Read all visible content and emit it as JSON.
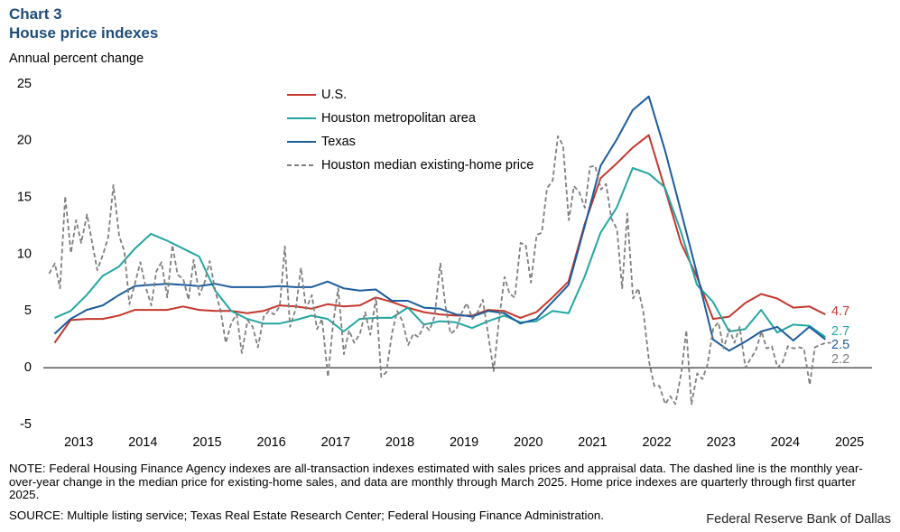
{
  "chart_data": {
    "type": "line",
    "label": "Chart 3",
    "title": "House price indexes",
    "subtitle": "Annual percent change",
    "note": "NOTE: Federal Housing Finance Agency indexes are all-transaction indexes estimated with sales prices and appraisal data. The dashed line is the monthly year-over-year change in the median price for existing-home sales, and data are monthly through March 2025. Home price indexes are quarterly through first quarter 2025.",
    "source": "SOURCE: Multiple listing service; Texas Real Estate Research Center; Federal Housing Finance Administration.",
    "credit": "Federal Reserve Bank of Dallas",
    "xlim": [
      2012.95,
      2025.85
    ],
    "xticks": [
      2013,
      2014,
      2015,
      2016,
      2017,
      2018,
      2019,
      2020,
      2021,
      2022,
      2023,
      2024,
      2025
    ],
    "ylim": [
      -5,
      25
    ],
    "yticks": [
      -5,
      0,
      5,
      10,
      15,
      20,
      25
    ],
    "series": [
      {
        "name": "U.S.",
        "color": "#c5372c",
        "dashed": false,
        "x": [
          2013.125,
          2013.375,
          2013.625,
          2013.875,
          2014.125,
          2014.375,
          2014.625,
          2014.875,
          2015.125,
          2015.375,
          2015.625,
          2015.875,
          2016.125,
          2016.375,
          2016.625,
          2016.875,
          2017.125,
          2017.375,
          2017.625,
          2017.875,
          2018.125,
          2018.375,
          2018.625,
          2018.875,
          2019.125,
          2019.375,
          2019.625,
          2019.875,
          2020.125,
          2020.375,
          2020.625,
          2020.875,
          2021.125,
          2021.375,
          2021.625,
          2021.875,
          2022.125,
          2022.375,
          2022.625,
          2022.875,
          2023.125,
          2023.375,
          2023.625,
          2023.875,
          2024.125,
          2024.375,
          2024.625,
          2024.875,
          2025.125
        ],
        "values": [
          2.2,
          4.2,
          4.3,
          4.3,
          4.6,
          5.1,
          5.1,
          5.1,
          5.4,
          5.1,
          5.0,
          5.0,
          4.8,
          5.0,
          5.5,
          5.4,
          5.2,
          5.6,
          5.4,
          5.5,
          6.2,
          5.8,
          5.3,
          4.9,
          4.7,
          4.6,
          4.6,
          5.1,
          5.0,
          4.4,
          4.9,
          6.2,
          7.6,
          12.6,
          16.7,
          18.0,
          19.4,
          20.5,
          15.8,
          11.0,
          8.0,
          4.3,
          4.5,
          5.7,
          6.5,
          6.1,
          5.3,
          5.4,
          4.7
        ]
      },
      {
        "name": "Houston metropolitan area",
        "color": "#23a6a1",
        "dashed": false,
        "x": [
          2013.125,
          2013.375,
          2013.625,
          2013.875,
          2014.125,
          2014.375,
          2014.625,
          2014.875,
          2015.125,
          2015.375,
          2015.625,
          2015.875,
          2016.125,
          2016.375,
          2016.625,
          2016.875,
          2017.125,
          2017.375,
          2017.625,
          2017.875,
          2018.125,
          2018.375,
          2018.625,
          2018.875,
          2019.125,
          2019.375,
          2019.625,
          2019.875,
          2020.125,
          2020.375,
          2020.625,
          2020.875,
          2021.125,
          2021.375,
          2021.625,
          2021.875,
          2022.125,
          2022.375,
          2022.625,
          2022.875,
          2023.125,
          2023.375,
          2023.625,
          2023.875,
          2024.125,
          2024.375,
          2024.625,
          2024.875,
          2025.125
        ],
        "values": [
          4.4,
          5.0,
          6.4,
          8.1,
          8.9,
          10.5,
          11.8,
          11.2,
          10.5,
          9.8,
          6.8,
          5.0,
          4.3,
          3.9,
          3.9,
          4.2,
          4.6,
          4.3,
          3.2,
          4.3,
          4.4,
          4.4,
          5.3,
          3.8,
          4.1,
          4.0,
          3.5,
          4.1,
          4.6,
          4.0,
          4.1,
          5.0,
          4.8,
          8.0,
          11.9,
          14.1,
          17.6,
          17.1,
          15.9,
          12.0,
          7.3,
          5.8,
          3.2,
          3.4,
          5.1,
          3.1,
          3.8,
          3.7,
          2.7
        ]
      },
      {
        "name": "Texas",
        "color": "#1b5c9e",
        "dashed": false,
        "x": [
          2013.125,
          2013.375,
          2013.625,
          2013.875,
          2014.125,
          2014.375,
          2014.625,
          2014.875,
          2015.125,
          2015.375,
          2015.625,
          2015.875,
          2016.125,
          2016.375,
          2016.625,
          2016.875,
          2017.125,
          2017.375,
          2017.625,
          2017.875,
          2018.125,
          2018.375,
          2018.625,
          2018.875,
          2019.125,
          2019.375,
          2019.625,
          2019.875,
          2020.125,
          2020.375,
          2020.625,
          2020.875,
          2021.125,
          2021.375,
          2021.625,
          2021.875,
          2022.125,
          2022.375,
          2022.625,
          2022.875,
          2023.125,
          2023.375,
          2023.625,
          2023.875,
          2024.125,
          2024.375,
          2024.625,
          2024.875,
          2025.125
        ],
        "values": [
          3.0,
          4.3,
          5.1,
          5.5,
          6.4,
          7.2,
          7.3,
          7.4,
          7.3,
          7.2,
          7.4,
          7.1,
          7.1,
          7.1,
          7.2,
          7.1,
          7.1,
          7.6,
          7.0,
          6.8,
          6.9,
          5.9,
          5.9,
          5.3,
          5.2,
          4.7,
          4.5,
          5.0,
          4.8,
          3.9,
          4.3,
          5.8,
          7.3,
          12.4,
          17.8,
          20.1,
          22.7,
          23.9,
          19.2,
          13.8,
          8.3,
          2.5,
          1.5,
          2.3,
          3.2,
          3.6,
          2.4,
          3.6,
          2.5
        ]
      },
      {
        "name": "Houston median existing-home price",
        "color": "#7f7f7f",
        "dashed": true,
        "x": [
          2013.04,
          2013.13,
          2013.21,
          2013.29,
          2013.38,
          2013.46,
          2013.54,
          2013.63,
          2013.71,
          2013.79,
          2013.88,
          2013.96,
          2014.04,
          2014.13,
          2014.21,
          2014.29,
          2014.38,
          2014.46,
          2014.54,
          2014.63,
          2014.71,
          2014.79,
          2014.88,
          2014.96,
          2015.04,
          2015.13,
          2015.21,
          2015.29,
          2015.38,
          2015.46,
          2015.54,
          2015.63,
          2015.71,
          2015.79,
          2015.88,
          2015.96,
          2016.04,
          2016.13,
          2016.21,
          2016.29,
          2016.38,
          2016.46,
          2016.54,
          2016.63,
          2016.71,
          2016.79,
          2016.88,
          2016.96,
          2017.04,
          2017.13,
          2017.21,
          2017.29,
          2017.38,
          2017.46,
          2017.54,
          2017.63,
          2017.71,
          2017.79,
          2017.88,
          2017.96,
          2018.04,
          2018.13,
          2018.21,
          2018.29,
          2018.38,
          2018.46,
          2018.54,
          2018.63,
          2018.71,
          2018.79,
          2018.88,
          2018.96,
          2019.04,
          2019.13,
          2019.21,
          2019.29,
          2019.38,
          2019.46,
          2019.54,
          2019.63,
          2019.71,
          2019.79,
          2019.88,
          2019.96,
          2020.04,
          2020.13,
          2020.21,
          2020.29,
          2020.38,
          2020.46,
          2020.54,
          2020.63,
          2020.71,
          2020.79,
          2020.88,
          2020.96,
          2021.04,
          2021.13,
          2021.21,
          2021.29,
          2021.38,
          2021.46,
          2021.54,
          2021.63,
          2021.71,
          2021.79,
          2021.88,
          2021.96,
          2022.04,
          2022.13,
          2022.21,
          2022.29,
          2022.38,
          2022.46,
          2022.54,
          2022.63,
          2022.71,
          2022.79,
          2022.88,
          2022.96,
          2023.04,
          2023.13,
          2023.21,
          2023.29,
          2023.38,
          2023.46,
          2023.54,
          2023.63,
          2023.71,
          2023.79,
          2023.88,
          2023.96,
          2024.04,
          2024.13,
          2024.21,
          2024.29,
          2024.38,
          2024.46,
          2024.54,
          2024.63,
          2024.71,
          2024.79,
          2024.88,
          2024.96,
          2025.04,
          2025.13,
          2025.21
        ],
        "values": [
          8.3,
          9.2,
          7.0,
          15.1,
          10.1,
          13.0,
          11.0,
          13.5,
          11.0,
          8.6,
          10.0,
          11.5,
          16.1,
          11.6,
          10.3,
          5.6,
          7.5,
          9.3,
          7.2,
          5.5,
          8.5,
          9.3,
          6.2,
          10.8,
          8.2,
          7.8,
          6.0,
          9.5,
          6.4,
          7.5,
          9.4,
          6.7,
          5.0,
          2.2,
          4.0,
          4.7,
          1.3,
          4.2,
          3.6,
          1.8,
          4.5,
          5.0,
          4.7,
          5.4,
          10.7,
          3.6,
          5.2,
          8.8,
          5.2,
          6.4,
          3.4,
          4.3,
          -0.8,
          3.8,
          7.0,
          1.2,
          3.3,
          2.2,
          3.0,
          4.9,
          2.9,
          6.2,
          -0.8,
          -0.4,
          3.1,
          5.0,
          4.1,
          2.0,
          3.0,
          2.7,
          3.8,
          3.3,
          4.5,
          9.2,
          5.4,
          3.0,
          3.4,
          4.8,
          5.7,
          4.3,
          4.9,
          6.0,
          2.7,
          -0.3,
          4.0,
          8.0,
          6.5,
          6.2,
          11.0,
          10.8,
          7.5,
          11.7,
          11.9,
          15.8,
          16.5,
          20.4,
          19.6,
          13.0,
          16.0,
          15.5,
          14.1,
          17.7,
          17.8,
          15.7,
          16.2,
          13.2,
          12.2,
          7.0,
          13.6,
          6.1,
          7.0,
          4.9,
          0.5,
          -1.6,
          -1.6,
          -3.2,
          -2.5,
          -3.2,
          -0.5,
          3.3,
          -3.2,
          -0.5,
          -1.0,
          0.3,
          3.5,
          4.0,
          1.7,
          3.4,
          2.2,
          3.6,
          0.0,
          0.8,
          1.5,
          3.2,
          1.7,
          1.9,
          0.0,
          0.5,
          1.9,
          1.7,
          1.8,
          1.7,
          -1.5,
          1.8,
          2.0,
          2.2,
          2.2
        ]
      }
    ]
  }
}
